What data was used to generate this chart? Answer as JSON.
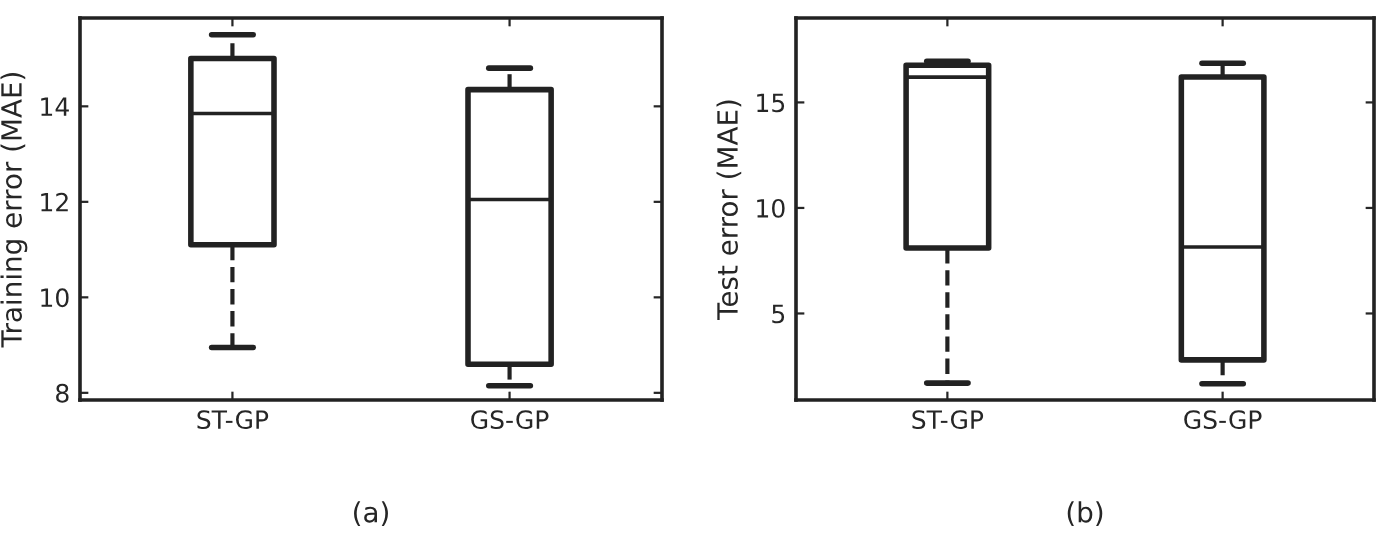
{
  "chart_data": [
    {
      "type": "box",
      "ylabel": "Training error (MAE)",
      "categories": [
        "ST-GP",
        "GS-GP"
      ],
      "ylim": [
        7.85,
        15.85
      ],
      "yticks": [
        8,
        10,
        12,
        14
      ],
      "grid": false,
      "line_style": "dashed",
      "annotations": [
        "(a)"
      ],
      "boxes": [
        {
          "low": 8.95,
          "q1": 11.1,
          "median": 13.85,
          "q3": 15.0,
          "high": 15.5
        },
        {
          "low": 8.15,
          "q1": 8.6,
          "median": 12.05,
          "q3": 14.35,
          "high": 14.8
        }
      ]
    },
    {
      "type": "box",
      "ylabel": "Test error (MAE)",
      "categories": [
        "ST-GP",
        "GS-GP"
      ],
      "ylim": [
        0.9,
        19
      ],
      "yticks": [
        5,
        10,
        15
      ],
      "grid": false,
      "line_style": "dashed",
      "annotations": [
        "(b)"
      ],
      "boxes": [
        {
          "low": 1.7,
          "q1": 8.1,
          "median": 16.2,
          "q3": 16.76,
          "high": 16.95
        },
        {
          "low": 1.67,
          "q1": 2.8,
          "median": 8.15,
          "q3": 16.2,
          "high": 16.86
        }
      ]
    }
  ]
}
